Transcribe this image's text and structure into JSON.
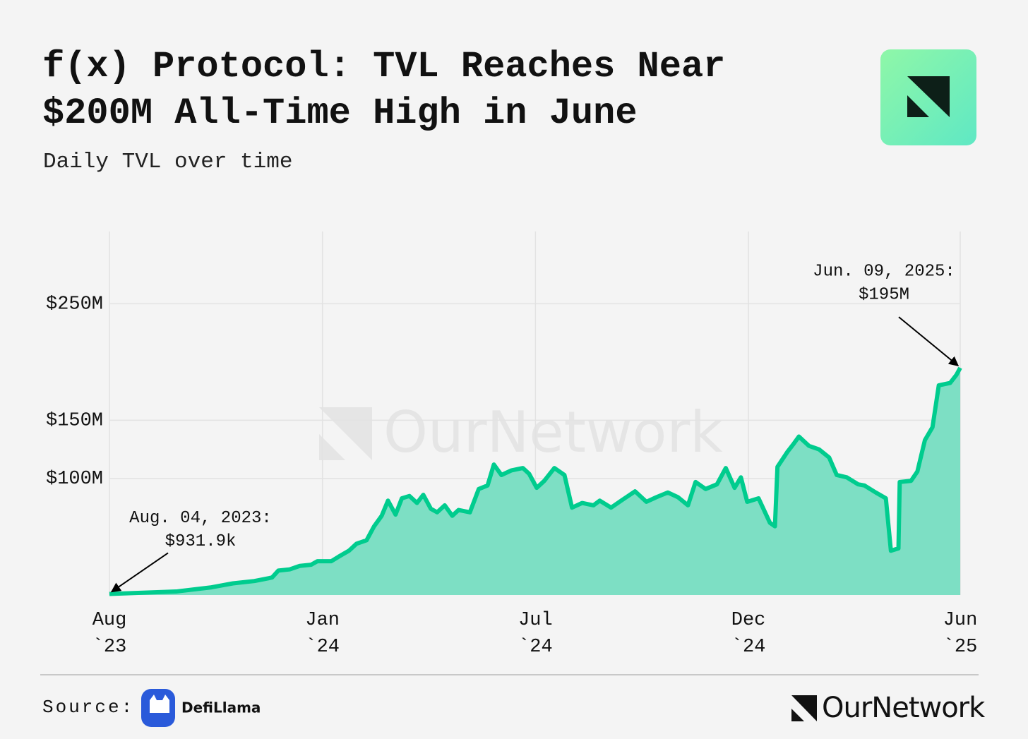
{
  "chart_data": {
    "type": "area",
    "title": "f(x) Protocol: TVL Reaches Near $200M All-Time High in June",
    "subtitle": "Daily TVL over time",
    "x": [
      "2023-08-04",
      "2023-09-26",
      "2023-10-24",
      "2023-11-10",
      "2023-11-27",
      "2023-12-11",
      "2023-12-16",
      "2023-12-25",
      "2024-01-02",
      "2024-01-11",
      "2024-01-16",
      "2024-01-27",
      "2024-02-02",
      "2024-02-10",
      "2024-02-16",
      "2024-02-24",
      "2024-03-01",
      "2024-03-07",
      "2024-03-12",
      "2024-03-18",
      "2024-03-23",
      "2024-03-29",
      "2024-04-04",
      "2024-04-09",
      "2024-04-15",
      "2024-04-20",
      "2024-04-26",
      "2024-05-02",
      "2024-05-07",
      "2024-05-16",
      "2024-05-23",
      "2024-05-30",
      "2024-06-04",
      "2024-06-10",
      "2024-06-18",
      "2024-06-27",
      "2024-07-02",
      "2024-07-08",
      "2024-07-14",
      "2024-07-22",
      "2024-07-30",
      "2024-08-05",
      "2024-08-13",
      "2024-08-22",
      "2024-08-27",
      "2024-09-05",
      "2024-09-13",
      "2024-09-24",
      "2024-10-03",
      "2024-10-11",
      "2024-10-20",
      "2024-10-28",
      "2024-11-05",
      "2024-11-11",
      "2024-11-19",
      "2024-11-28",
      "2024-12-05",
      "2024-12-12",
      "2024-12-17",
      "2024-12-22",
      "2024-12-31",
      "2025-01-09",
      "2025-01-13",
      "2025-01-15",
      "2025-01-23",
      "2025-01-28",
      "2025-02-01",
      "2025-02-09",
      "2025-02-17",
      "2025-02-25",
      "2025-03-03",
      "2025-03-11",
      "2025-03-20",
      "2025-03-25",
      "2025-04-03",
      "2025-04-11",
      "2025-04-15",
      "2025-04-21",
      "2025-04-22",
      "2025-05-01",
      "2025-05-06",
      "2025-05-12",
      "2025-05-18",
      "2025-05-23",
      "2025-06-01",
      "2025-06-06",
      "2025-06-09"
    ],
    "series": [
      {
        "name": "TVL",
        "color": "#00cc8e",
        "fill": "#7ddfc4",
        "values": [
          0.9319,
          3,
          6.6,
          10,
          12,
          15,
          21,
          22,
          25,
          26,
          29,
          29,
          33,
          38,
          44,
          47,
          59,
          68,
          81,
          69,
          83,
          85,
          79,
          86,
          74,
          71,
          77,
          68,
          73,
          71,
          91,
          94,
          112,
          103,
          107,
          109,
          104,
          92,
          98,
          109,
          103,
          75,
          79,
          77,
          81,
          75,
          81,
          89,
          80,
          84,
          88,
          84,
          77,
          97,
          91,
          95,
          109,
          92,
          101,
          80,
          83,
          62,
          59,
          110,
          123,
          130,
          136,
          128,
          125,
          118,
          103,
          101,
          95,
          94,
          88,
          83,
          38,
          40,
          97,
          98,
          106,
          133,
          144,
          180,
          182,
          189,
          195
        ]
      }
    ],
    "xlim": [
      "2023-08-04",
      "2025-06-09"
    ],
    "xticks": [
      {
        "value": "2023-08-04",
        "label": [
          "Aug",
          "`23"
        ]
      },
      {
        "value": "2024-01-20",
        "label": [
          "Jan",
          "`24"
        ]
      },
      {
        "value": "2024-07-07",
        "label": [
          "Jul",
          "`24"
        ]
      },
      {
        "value": "2024-12-23",
        "label": [
          "Dec",
          "`24"
        ]
      },
      {
        "value": "2025-06-09",
        "label": [
          "Jun",
          "`25"
        ]
      }
    ],
    "ylim": [
      0,
      312
    ],
    "yticks": [
      {
        "value": 100,
        "label": "$100M"
      },
      {
        "value": 150,
        "label": "$150M"
      },
      {
        "value": 250,
        "label": "$250M"
      }
    ],
    "grid": true,
    "annotations": [
      {
        "text": [
          "Aug. 04, 2023:",
          "$931.9k"
        ],
        "point": 0
      },
      {
        "text": [
          "Jun. 09, 2025:",
          "$195M"
        ],
        "point": 86
      }
    ]
  },
  "footer": {
    "source": "Source:",
    "source_name": "DefiLlama",
    "brand": "OurNetwork",
    "watermark": "OurNetwork"
  }
}
